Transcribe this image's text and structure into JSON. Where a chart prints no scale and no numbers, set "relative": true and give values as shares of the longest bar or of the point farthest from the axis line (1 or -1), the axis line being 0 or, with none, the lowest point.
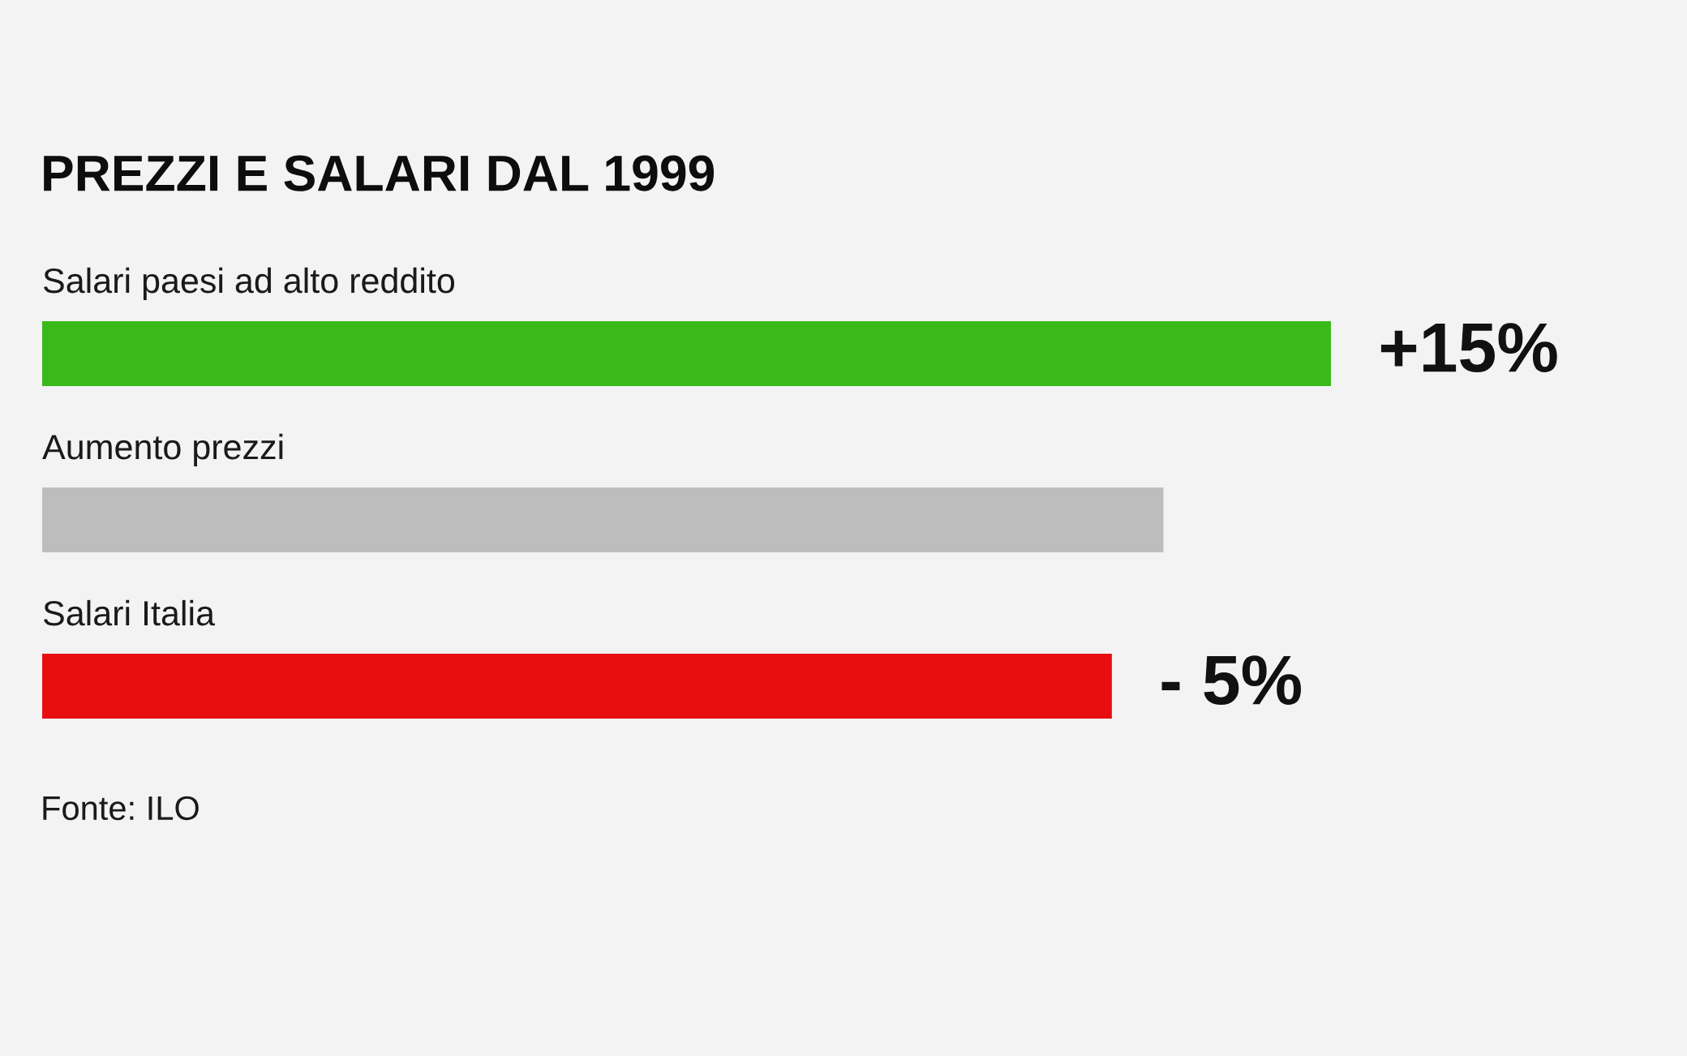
{
  "chart_data": {
    "type": "bar",
    "orientation": "horizontal",
    "relative": true,
    "title": "PREZZI E SALARI DAL 1999",
    "categories": [
      "Salari paesi ad alto reddito",
      "Aumento prezzi",
      "Salari Italia"
    ],
    "values": [
      1,
      0.87,
      0.83
    ],
    "colors": [
      "#3aba1a",
      "#bdbdbd",
      "#e80e10"
    ],
    "annotations": [
      {
        "text": "+15%",
        "x": 1,
        "y": "Salari paesi ad alto reddito"
      },
      {
        "text": "- 5%",
        "x": 0.83,
        "y": "Salari Italia"
      },
      "Fonte: ILO"
    ]
  }
}
